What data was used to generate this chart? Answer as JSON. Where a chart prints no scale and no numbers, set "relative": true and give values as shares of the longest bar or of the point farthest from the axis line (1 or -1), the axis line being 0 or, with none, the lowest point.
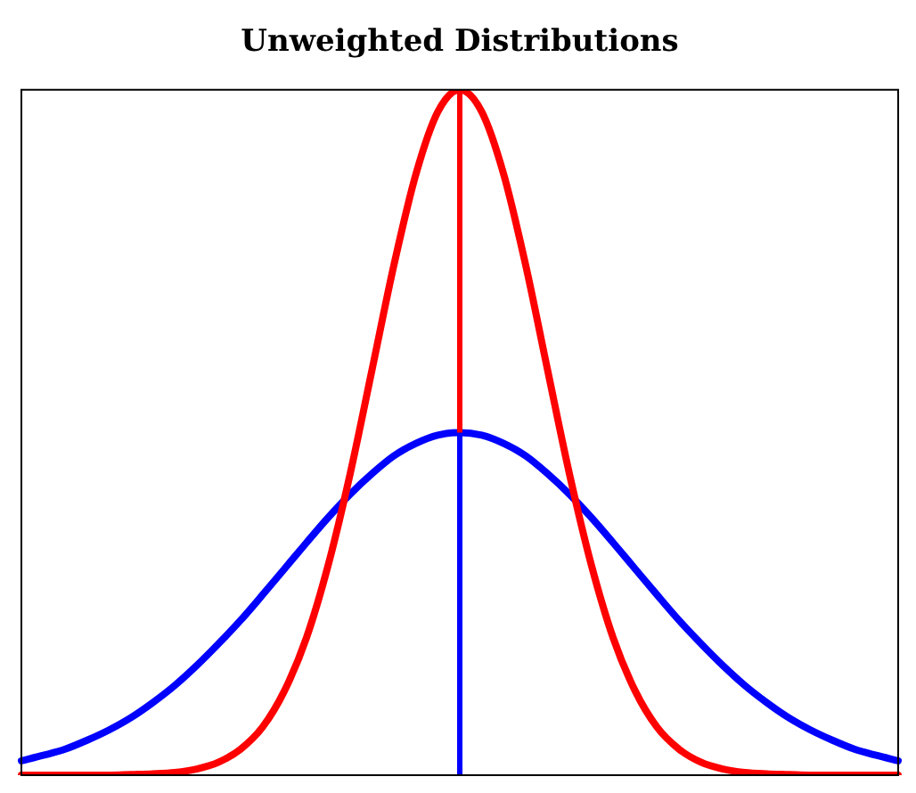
{
  "chart_data": {
    "type": "line",
    "title": "Unweighted Distributions",
    "relative": true,
    "legend": false,
    "marker": "none",
    "line_style": "solid",
    "categories": [
      null,
      null,
      null,
      null,
      null,
      null,
      null,
      null,
      null,
      null,
      null,
      null,
      null,
      null,
      null,
      null,
      null,
      null,
      null,
      null,
      null,
      null,
      null,
      null,
      null,
      null,
      null,
      null,
      null,
      null,
      null,
      null,
      null,
      null,
      null,
      null,
      null,
      null,
      null,
      null,
      null
    ],
    "series": [
      {
        "color": "#ff0000",
        "values": [
          0,
          0,
          0,
          0,
          0,
          0.001,
          0.002,
          0.004,
          0.009,
          0.019,
          0.038,
          0.07,
          0.123,
          0.2,
          0.307,
          0.44,
          0.592,
          0.745,
          0.877,
          0.968,
          1,
          0.968,
          0.877,
          0.745,
          0.592,
          0.44,
          0.307,
          0.2,
          0.123,
          0.07,
          0.038,
          0.019,
          0.009,
          0.004,
          0.002,
          0.001,
          0,
          0,
          0,
          0,
          0
        ]
      },
      {
        "color": "#0000ff",
        "values": [
          0.021,
          0.029,
          0.038,
          0.051,
          0.066,
          0.084,
          0.106,
          0.131,
          0.16,
          0.192,
          0.226,
          0.263,
          0.301,
          0.339,
          0.376,
          0.41,
          0.44,
          0.466,
          0.484,
          0.496,
          0.5,
          0.496,
          0.484,
          0.466,
          0.44,
          0.41,
          0.376,
          0.339,
          0.301,
          0.263,
          0.226,
          0.192,
          0.16,
          0.131,
          0.106,
          0.084,
          0.066,
          0.051,
          0.038,
          0.029,
          0.021
        ]
      }
    ]
  }
}
